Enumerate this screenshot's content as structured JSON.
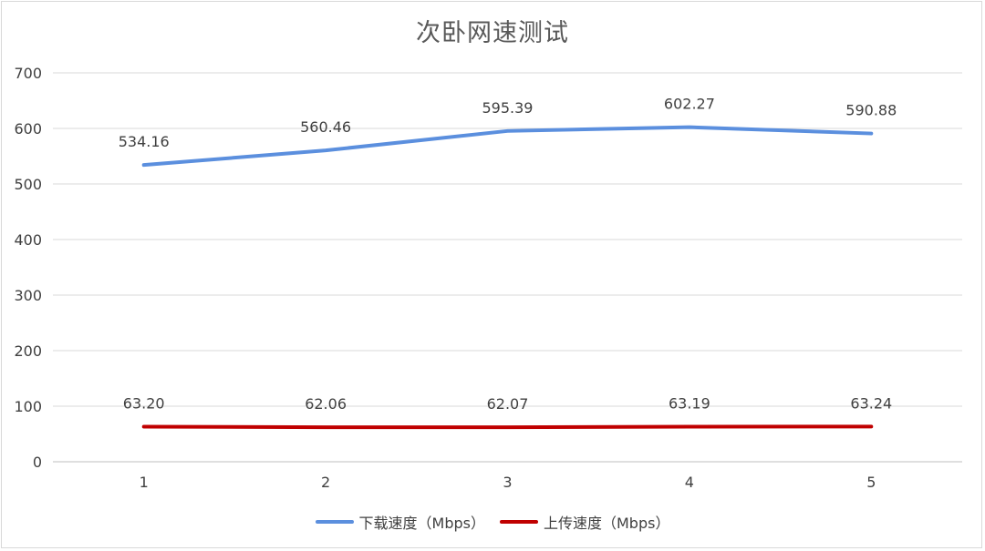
{
  "title": "次卧网速测试",
  "chart_data": {
    "type": "line",
    "title": "次卧网速测试",
    "categories": [
      "1",
      "2",
      "3",
      "4",
      "5"
    ],
    "ylim": [
      0,
      700
    ],
    "yticks": [
      0,
      100,
      200,
      300,
      400,
      500,
      600,
      700
    ],
    "grid": true,
    "legend_position": "bottom",
    "series": [
      {
        "name": "下载速度（Mbps）",
        "color": "#5b8fde",
        "values": [
          534.16,
          560.46,
          595.39,
          602.27,
          590.88
        ],
        "labels": [
          "534.16",
          "560.46",
          "595.39",
          "602.27",
          "590.88"
        ]
      },
      {
        "name": "上传速度（Mbps）",
        "color": "#c00000",
        "values": [
          63.2,
          62.06,
          62.07,
          63.19,
          63.24
        ],
        "labels": [
          "63.20",
          "62.06",
          "62.07",
          "63.19",
          "63.24"
        ]
      }
    ]
  }
}
